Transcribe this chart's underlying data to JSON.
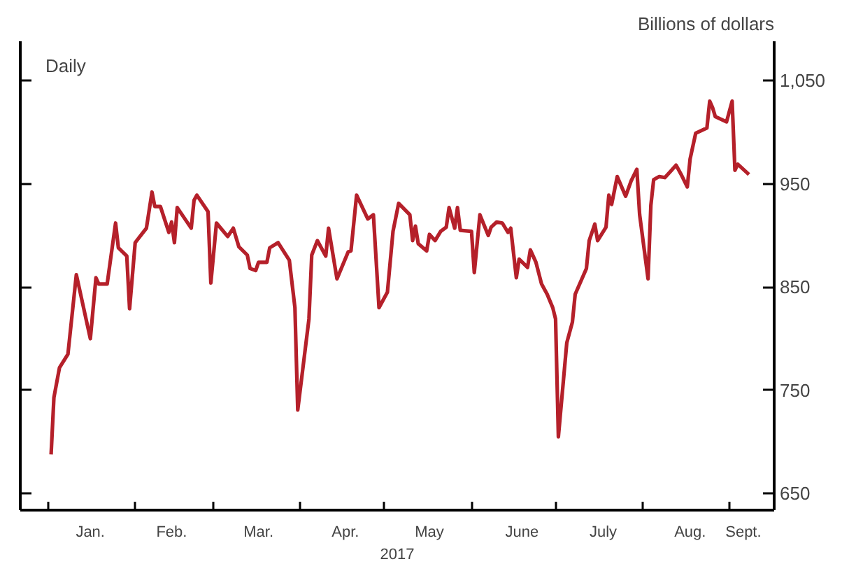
{
  "chart_data": {
    "type": "line",
    "xlabel": "2017",
    "ylabel": "Billions of dollars",
    "annotations": [
      "Daily"
    ],
    "x": [
      "2017-01-02",
      "2017-01-03",
      "2017-01-05",
      "2017-01-08",
      "2017-01-11",
      "2017-01-16",
      "2017-01-18",
      "2017-01-19",
      "2017-01-22",
      "2017-01-25",
      "2017-01-26",
      "2017-01-29",
      "2017-01-30",
      "2017-02-01",
      "2017-02-03",
      "2017-02-05",
      "2017-02-07",
      "2017-02-08",
      "2017-02-10",
      "2017-02-13",
      "2017-02-14",
      "2017-02-15",
      "2017-02-16",
      "2017-02-21",
      "2017-02-22",
      "2017-02-23",
      "2017-02-27",
      "2017-02-28",
      "2017-03-02",
      "2017-03-06",
      "2017-03-08",
      "2017-03-10",
      "2017-03-13",
      "2017-03-14",
      "2017-03-16",
      "2017-03-17",
      "2017-03-20",
      "2017-03-21",
      "2017-03-24",
      "2017-03-28",
      "2017-03-30",
      "2017-03-31",
      "2017-04-04",
      "2017-04-05",
      "2017-04-07",
      "2017-04-10",
      "2017-04-11",
      "2017-04-14",
      "2017-04-18",
      "2017-04-19",
      "2017-04-21",
      "2017-04-25",
      "2017-04-27",
      "2017-04-29",
      "2017-05-02",
      "2017-05-04",
      "2017-05-06",
      "2017-05-10",
      "2017-05-11",
      "2017-05-12",
      "2017-05-13",
      "2017-05-16",
      "2017-05-17",
      "2017-05-19",
      "2017-05-21",
      "2017-05-23",
      "2017-05-24",
      "2017-05-26",
      "2017-05-27",
      "2017-05-28",
      "2017-06-01",
      "2017-06-02",
      "2017-06-04",
      "2017-06-07",
      "2017-06-08",
      "2017-06-10",
      "2017-06-12",
      "2017-06-14",
      "2017-06-15",
      "2017-06-17",
      "2017-06-18",
      "2017-06-21",
      "2017-06-22",
      "2017-06-24",
      "2017-06-26",
      "2017-06-28",
      "2017-06-30",
      "2017-07-01",
      "2017-07-02",
      "2017-07-05",
      "2017-07-07",
      "2017-07-08",
      "2017-07-12",
      "2017-07-13",
      "2017-07-15",
      "2017-07-16",
      "2017-07-19",
      "2017-07-20",
      "2017-07-21",
      "2017-07-23",
      "2017-07-26",
      "2017-07-28",
      "2017-07-30",
      "2017-07-31",
      "2017-08-03",
      "2017-08-04",
      "2017-08-05",
      "2017-08-07",
      "2017-08-09",
      "2017-08-11",
      "2017-08-13",
      "2017-08-15",
      "2017-08-17",
      "2017-08-18",
      "2017-08-20",
      "2017-08-24",
      "2017-08-25",
      "2017-08-26",
      "2017-08-27",
      "2017-08-31",
      "2017-09-02",
      "2017-09-03",
      "2017-09-04",
      "2017-09-08"
    ],
    "series": [
      {
        "color": "#b5202a",
        "values": [
          688,
          743,
          772,
          785,
          862,
          800,
          859,
          853,
          853,
          912,
          888,
          880,
          829,
          893,
          900,
          907,
          942,
          928,
          928,
          903,
          913,
          893,
          927,
          907,
          934,
          939,
          923,
          854,
          912,
          899,
          907,
          889,
          881,
          868,
          866,
          874,
          874,
          888,
          893,
          876,
          830,
          731,
          819,
          881,
          895,
          880,
          907,
          858,
          884,
          885,
          939,
          916,
          920,
          830,
          845,
          904,
          931,
          920,
          895,
          909,
          892,
          885,
          901,
          895,
          904,
          908,
          927,
          907,
          927,
          905,
          904,
          864,
          920,
          900,
          908,
          913,
          912,
          903,
          907,
          859,
          877,
          869,
          886,
          874,
          853,
          843,
          830,
          819,
          705,
          796,
          816,
          843,
          868,
          895,
          911,
          895,
          908,
          939,
          930,
          957,
          938,
          953,
          964,
          920,
          858,
          929,
          954,
          957,
          956,
          962,
          968,
          958,
          947,
          974,
          999,
          1004,
          1030,
          1024,
          1015,
          1010,
          1030,
          963,
          969,
          959
        ]
      }
    ],
    "xlim": [
      "2016-12-22",
      "2017-09-17"
    ],
    "xticks": [
      {
        "value": "2017-01-01",
        "label": null
      },
      {
        "value": "2017-01-16",
        "label": "Jan."
      },
      {
        "value": "2017-02-01",
        "label": null
      },
      {
        "value": "2017-02-14",
        "label": "Feb."
      },
      {
        "value": "2017-03-01",
        "label": null
      },
      {
        "value": "2017-03-17",
        "label": "Mar."
      },
      {
        "value": "2017-04-01",
        "label": null
      },
      {
        "value": "2017-04-17",
        "label": "Apr."
      },
      {
        "value": "2017-05-01",
        "label": null
      },
      {
        "value": "2017-05-17",
        "label": "May"
      },
      {
        "value": "2017-06-01",
        "label": null
      },
      {
        "value": "2017-06-19",
        "label": "June"
      },
      {
        "value": "2017-07-01",
        "label": null
      },
      {
        "value": "2017-07-18",
        "label": "July"
      },
      {
        "value": "2017-08-01",
        "label": null
      },
      {
        "value": "2017-08-18",
        "label": "Aug."
      },
      {
        "value": "2017-09-01",
        "label": null
      },
      {
        "value": "2017-09-06",
        "label": "Sept."
      }
    ],
    "ylim": [
      634,
      1088
    ],
    "yticks": [
      650,
      750,
      850,
      950,
      {
        "value": 1050,
        "label": "1,050"
      }
    ],
    "grid": false,
    "tick_labels": "xy",
    "line_style": "solid",
    "marker": "none"
  }
}
